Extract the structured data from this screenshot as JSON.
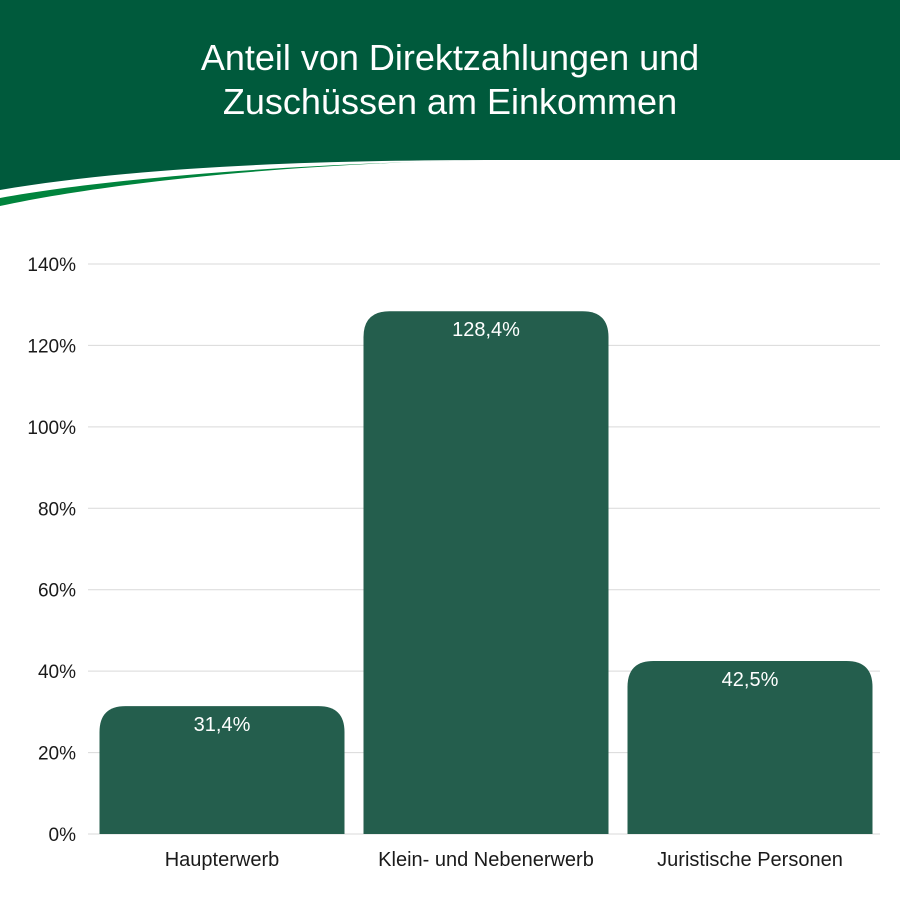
{
  "header": {
    "title_line1": "Anteil von Direktzahlungen und",
    "title_line2": "Zuschüssen am Einkommen",
    "colors": {
      "band": "#005a3c",
      "swoosh": "#00843d",
      "swoosh_edge": "#ffffff"
    }
  },
  "chart_data": {
    "type": "bar",
    "title": "Anteil von Direktzahlungen und Zuschüssen am Einkommen",
    "categories": [
      "Haupterwerb",
      "Klein- und Nebenerwerb",
      "Juristische Personen"
    ],
    "values": [
      31.4,
      128.4,
      42.5
    ],
    "value_labels": [
      "31,4%",
      "128,4%",
      "42,5%"
    ],
    "ylim": [
      0,
      140
    ],
    "yticks": [
      0,
      20,
      40,
      60,
      80,
      100,
      120,
      140
    ],
    "ytick_labels": [
      "0%",
      "20%",
      "40%",
      "60%",
      "80%",
      "100%",
      "120%",
      "140%"
    ],
    "grid": true,
    "legend": "none",
    "bar_color": "#245e4d",
    "grid_color": "#d9d9d9"
  }
}
